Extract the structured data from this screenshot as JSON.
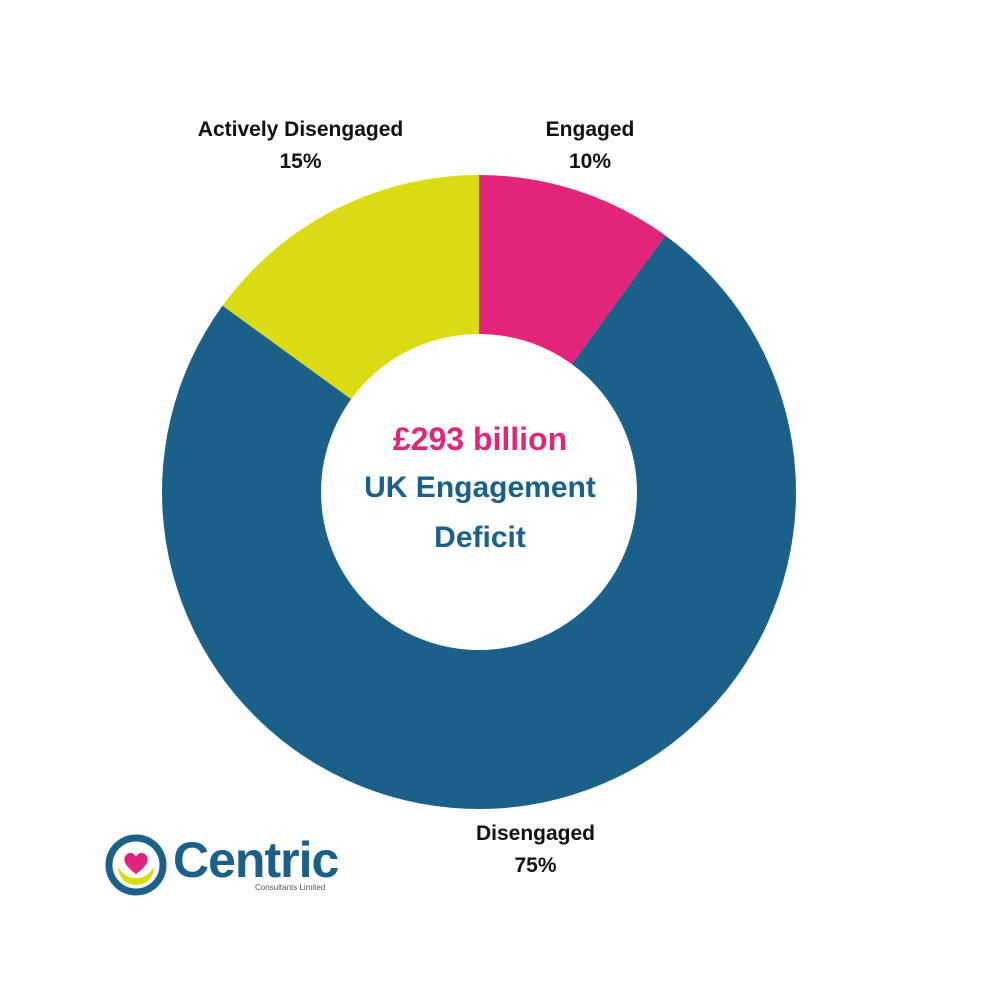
{
  "chart_data": {
    "type": "pie",
    "style": "donut",
    "slices": [
      {
        "label": "Engaged",
        "value": 10,
        "value_label": "10%",
        "color": "#E2257A"
      },
      {
        "label": "Disengaged",
        "value": 75,
        "value_label": "75%",
        "color": "#1A6088"
      },
      {
        "label": "Actively Disengaged",
        "value": 15,
        "value_label": "15%",
        "color": "#DCDC16"
      }
    ],
    "center": {
      "amount": "£293 billion",
      "caption_line1": "UK Engagement",
      "caption_line2": "Deficit",
      "amount_color": "#E2257A",
      "caption_color": "#1A6088"
    },
    "start_angle": "12 o'clock",
    "direction": "clockwise"
  },
  "logo": {
    "name": "Centric",
    "subtitle": "Consultants Limited",
    "ring_color": "#1A6088",
    "heart_color": "#E2257A",
    "hands_color": "#DCDC16"
  }
}
